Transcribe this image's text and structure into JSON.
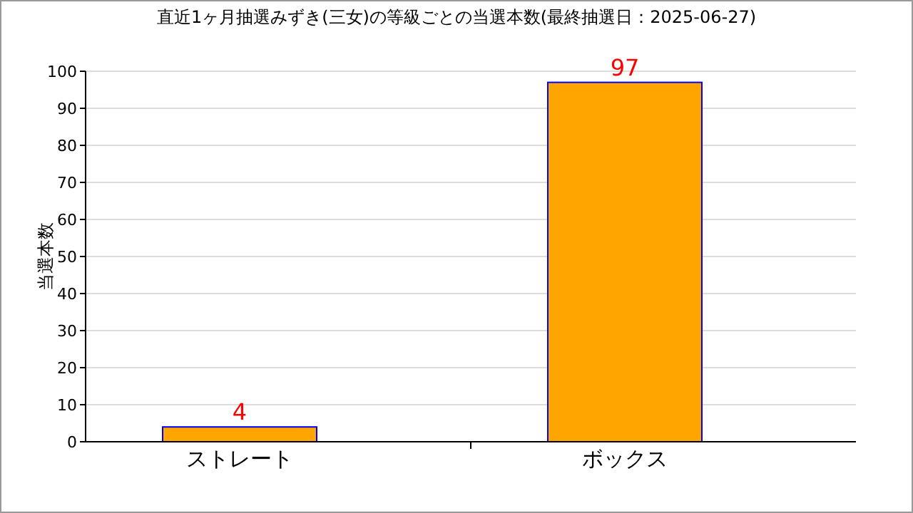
{
  "chart_data": {
    "type": "bar",
    "title": "直近1ヶ月抽選みずき(三女)の等級ごとの当選本数(最終抽選日：2025-06-27)",
    "ylabel": "当選本数",
    "categories": [
      "ストレート",
      "ボックス"
    ],
    "values": [
      4,
      97
    ],
    "color": "#ffa500",
    "ylim": [
      0,
      100
    ],
    "yticks": [
      0,
      10,
      20,
      30,
      40,
      50,
      60,
      70,
      80,
      90,
      100
    ],
    "grid": "y",
    "data_labels": true
  }
}
